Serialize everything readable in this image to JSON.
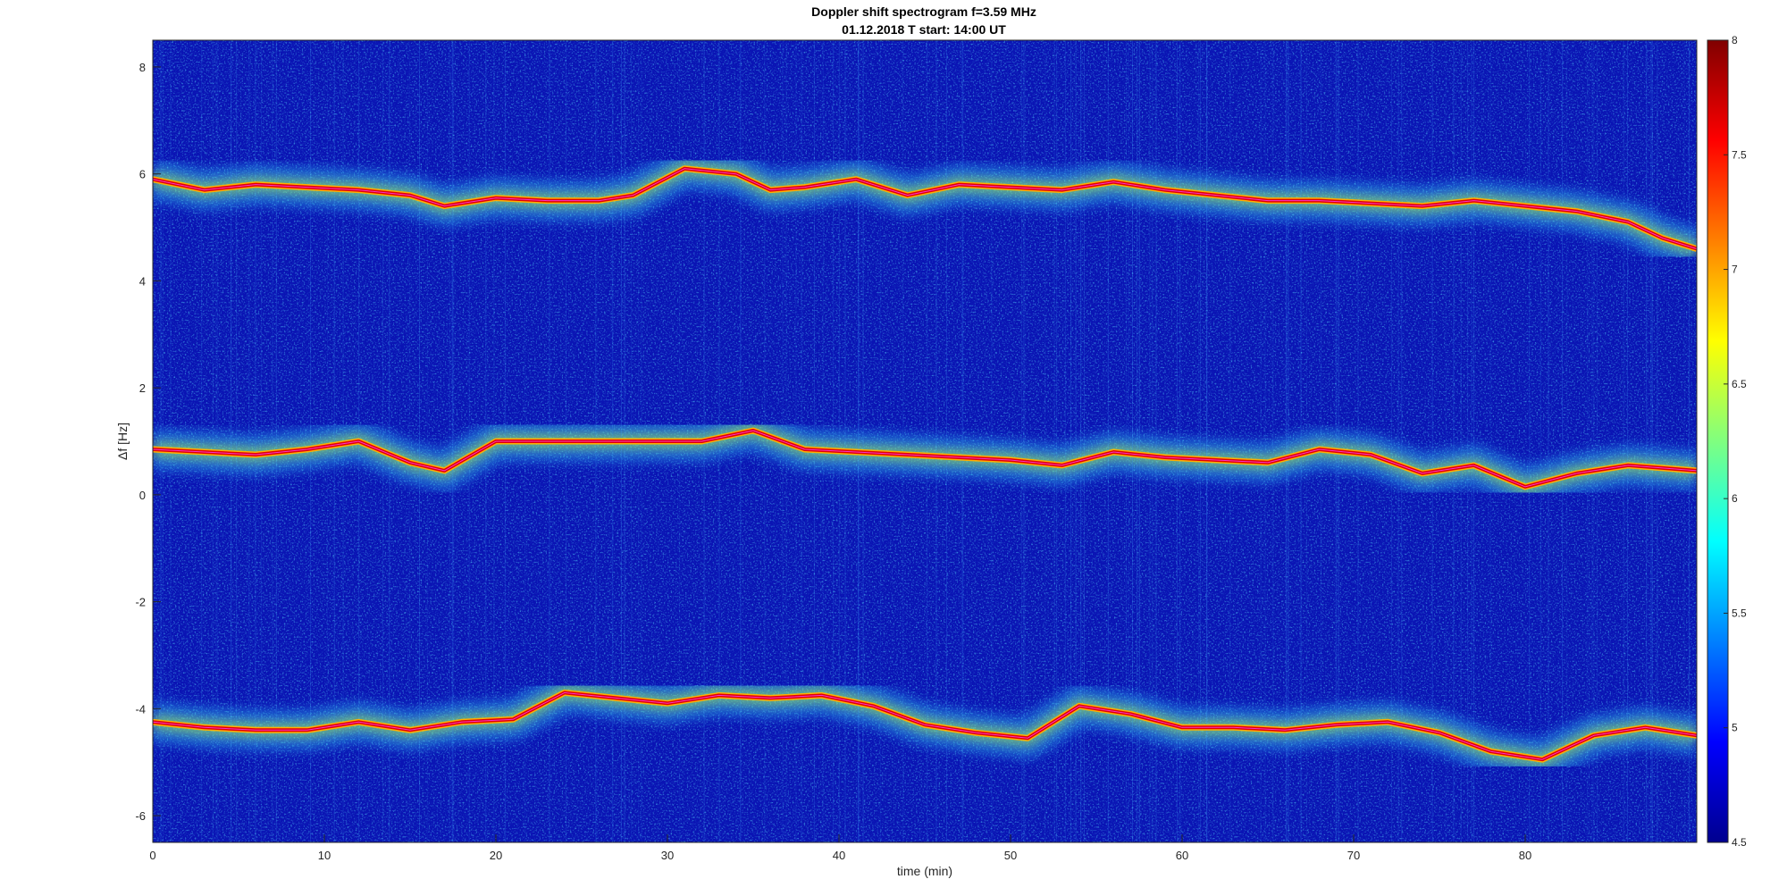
{
  "chart_data": {
    "type": "heatmap",
    "title": "Doppler shift spectrogram f=3.59 MHz",
    "subtitle": "01.12.2018   T start: 14:00 UT",
    "xlabel": "time (min)",
    "ylabel": "Δf [Hz]",
    "xlim": [
      0,
      90
    ],
    "ylim": [
      -6.5,
      8.5
    ],
    "xticks": [
      0,
      10,
      20,
      30,
      40,
      50,
      60,
      70,
      80
    ],
    "yticks": [
      -6,
      -4,
      -2,
      0,
      2,
      4,
      6,
      8
    ],
    "grid": false,
    "colormap": "jet",
    "clim": [
      4.5,
      8
    ],
    "colorbar_ticks": [
      4.5,
      5,
      5.5,
      6,
      6.5,
      7,
      7.5,
      8
    ],
    "traces": [
      {
        "x": [
          0,
          3,
          6,
          9,
          12,
          15,
          17,
          20,
          23,
          26,
          28,
          31,
          34,
          36,
          38,
          41,
          44,
          47,
          50,
          53,
          56,
          59,
          62,
          65,
          68,
          71,
          74,
          77,
          80,
          83,
          86,
          88,
          90
        ],
        "y": [
          5.9,
          5.7,
          5.8,
          5.75,
          5.7,
          5.6,
          5.4,
          5.55,
          5.5,
          5.5,
          5.6,
          6.1,
          6.0,
          5.7,
          5.75,
          5.9,
          5.6,
          5.8,
          5.75,
          5.7,
          5.85,
          5.7,
          5.6,
          5.5,
          5.5,
          5.45,
          5.4,
          5.5,
          5.4,
          5.3,
          5.1,
          4.8,
          4.6
        ]
      },
      {
        "x": [
          0,
          3,
          6,
          9,
          12,
          15,
          17,
          20,
          23,
          26,
          29,
          32,
          35,
          38,
          41,
          44,
          47,
          50,
          53,
          56,
          59,
          62,
          65,
          68,
          71,
          74,
          77,
          80,
          83,
          86,
          88,
          90
        ],
        "y": [
          0.85,
          0.8,
          0.75,
          0.85,
          1.0,
          0.6,
          0.45,
          1.0,
          1.0,
          1.0,
          1.0,
          1.0,
          1.2,
          0.85,
          0.8,
          0.75,
          0.7,
          0.65,
          0.55,
          0.8,
          0.7,
          0.65,
          0.6,
          0.85,
          0.75,
          0.4,
          0.55,
          0.15,
          0.4,
          0.55,
          0.5,
          0.45
        ]
      },
      {
        "x": [
          0,
          3,
          6,
          9,
          12,
          15,
          18,
          21,
          24,
          27,
          30,
          33,
          36,
          39,
          42,
          45,
          48,
          51,
          54,
          57,
          60,
          63,
          66,
          69,
          72,
          75,
          78,
          81,
          84,
          87,
          90
        ],
        "y": [
          -4.25,
          -4.35,
          -4.4,
          -4.4,
          -4.25,
          -4.4,
          -4.25,
          -4.2,
          -3.7,
          -3.8,
          -3.9,
          -3.75,
          -3.8,
          -3.75,
          -3.95,
          -4.3,
          -4.45,
          -4.55,
          -3.95,
          -4.1,
          -4.35,
          -4.35,
          -4.4,
          -4.3,
          -4.25,
          -4.45,
          -4.8,
          -4.95,
          -4.5,
          -4.35,
          -4.5
        ]
      }
    ]
  }
}
